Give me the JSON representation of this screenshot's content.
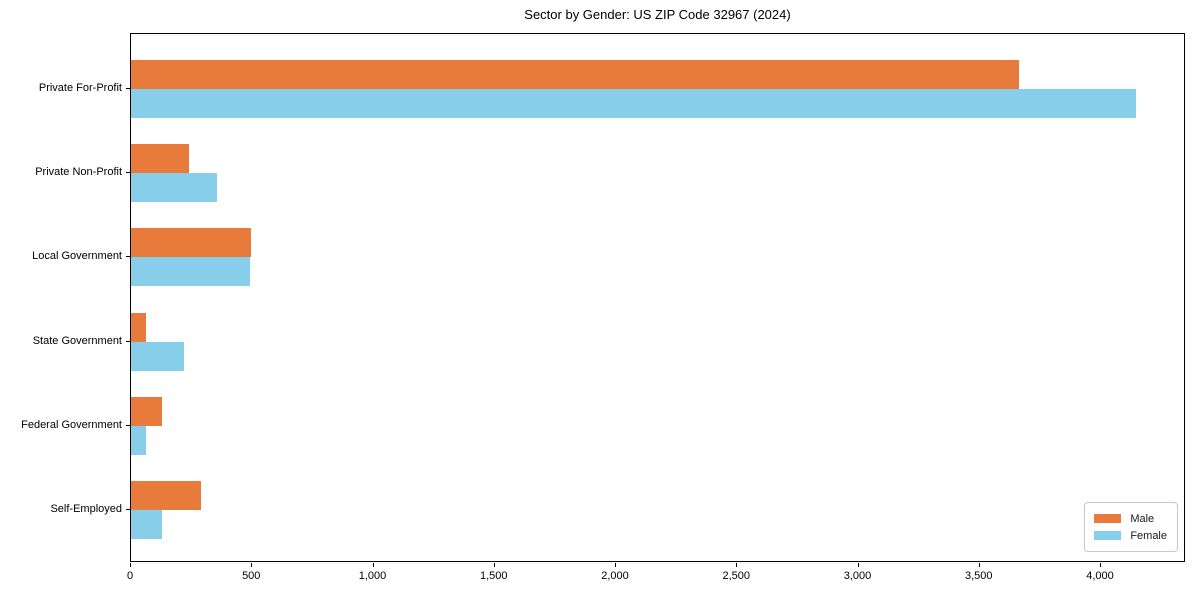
{
  "chart_data": {
    "type": "bar",
    "orientation": "horizontal",
    "title": "Sector by Gender: US ZIP Code 32967 (2024)",
    "categories": [
      "Private For-Profit",
      "Private Non-Profit",
      "Local Government",
      "State Government",
      "Federal Government",
      "Self-Employed"
    ],
    "series": [
      {
        "name": "Male",
        "color": "#e87a3c",
        "values": [
          3660,
          240,
          495,
          62,
          127,
          290
        ]
      },
      {
        "name": "Female",
        "color": "#87ceeb",
        "values": [
          4145,
          356,
          490,
          220,
          61,
          128
        ]
      }
    ],
    "xlabel": "",
    "ylabel": "",
    "xlim": [
      0,
      4350
    ],
    "xticks": [
      0,
      500,
      1000,
      1500,
      2000,
      2500,
      3000,
      3500,
      4000
    ],
    "xtick_labels": [
      "0",
      "500",
      "1,000",
      "1,500",
      "2,000",
      "2,500",
      "3,000",
      "3,500",
      "4,000"
    ],
    "grid": false,
    "legend_position": "lower right",
    "plot_border": "#000000",
    "background": "#ffffff"
  }
}
